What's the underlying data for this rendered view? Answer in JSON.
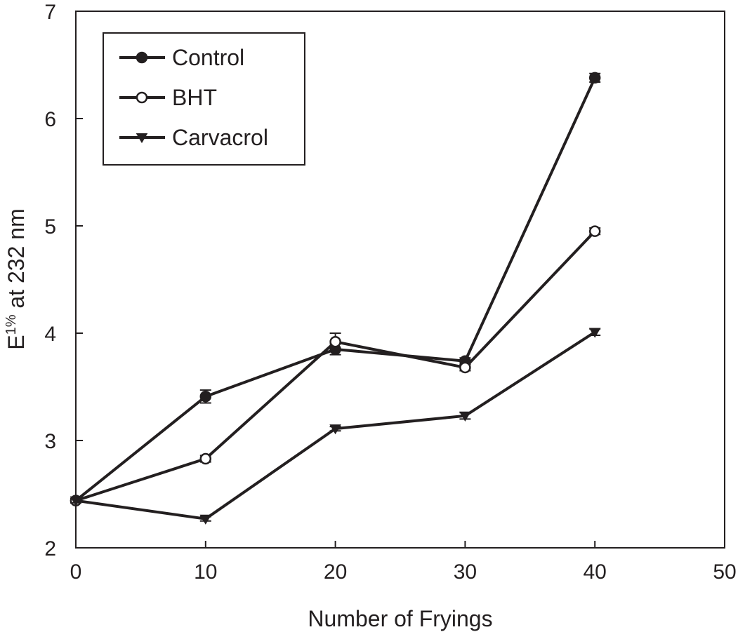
{
  "chart_data": {
    "type": "line",
    "xlabel": "Number of Fryings",
    "ylabel": {
      "prefix": "E",
      "superscript": "1%",
      "suffix": " at 232 nm"
    },
    "xlim": [
      0,
      50
    ],
    "ylim": [
      2,
      7
    ],
    "xticks": [
      "0",
      "10",
      "20",
      "30",
      "40",
      "50"
    ],
    "yticks": [
      "2",
      "3",
      "4",
      "5",
      "6",
      "7"
    ],
    "grid": false,
    "legend_position": "top-left",
    "x": [
      0,
      10,
      20,
      30,
      40
    ],
    "series": [
      {
        "name": "Control",
        "marker": "filled-circle",
        "values": [
          2.44,
          3.41,
          3.85,
          3.74,
          6.38
        ],
        "errors": [
          0.02,
          0.06,
          0.05,
          0.03,
          0.04
        ]
      },
      {
        "name": "BHT",
        "marker": "open-circle",
        "values": [
          2.44,
          2.83,
          3.92,
          3.68,
          4.95
        ],
        "errors": [
          0.02,
          0.03,
          0.08,
          0.03,
          0.03
        ]
      },
      {
        "name": "Carvacrol",
        "marker": "filled-triangle-down",
        "values": [
          2.44,
          2.27,
          3.11,
          3.23,
          4.01
        ],
        "errors": [
          0.02,
          0.02,
          0.02,
          0.03,
          0.03
        ]
      }
    ],
    "colors": {
      "line": "#231f20",
      "marker_fill_open": "#ffffff",
      "background": "#ffffff"
    }
  }
}
